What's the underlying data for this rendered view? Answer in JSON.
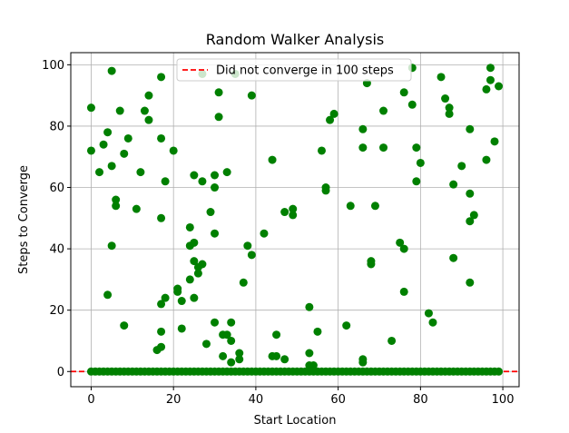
{
  "chart_data": {
    "type": "scatter",
    "title": "Random Walker Analysis",
    "xlabel": "Start Location",
    "ylabel": "Steps to Converge",
    "xlim": [
      -4.95,
      103.95
    ],
    "ylim": [
      -4.95,
      103.95
    ],
    "xticks": [
      0,
      20,
      40,
      60,
      80,
      100
    ],
    "yticks": [
      0,
      20,
      40,
      60,
      80,
      100
    ],
    "grid": true,
    "legend_position": "top-center",
    "reference_line": {
      "y": 0,
      "label": "Did not converge in 100 steps",
      "color": "#ff0000",
      "style": "dashed"
    },
    "series": [
      {
        "color": "#008000",
        "marker": "circle",
        "points": [
          [
            0,
            86
          ],
          [
            0,
            72
          ],
          [
            0,
            0
          ],
          [
            1,
            0
          ],
          [
            2,
            65
          ],
          [
            2,
            0
          ],
          [
            3,
            74
          ],
          [
            3,
            0
          ],
          [
            4,
            78
          ],
          [
            4,
            25
          ],
          [
            4,
            0
          ],
          [
            5,
            98
          ],
          [
            5,
            67
          ],
          [
            5,
            41
          ],
          [
            5,
            0
          ],
          [
            6,
            56
          ],
          [
            6,
            54
          ],
          [
            6,
            0
          ],
          [
            7,
            85
          ],
          [
            7,
            0
          ],
          [
            8,
            71
          ],
          [
            8,
            15
          ],
          [
            8,
            0
          ],
          [
            9,
            76
          ],
          [
            9,
            0
          ],
          [
            10,
            0
          ],
          [
            11,
            53
          ],
          [
            11,
            0
          ],
          [
            12,
            65
          ],
          [
            12,
            0
          ],
          [
            13,
            85
          ],
          [
            13,
            0
          ],
          [
            14,
            90
          ],
          [
            14,
            82
          ],
          [
            14,
            0
          ],
          [
            15,
            0
          ],
          [
            16,
            7
          ],
          [
            16,
            0
          ],
          [
            17,
            96
          ],
          [
            17,
            76
          ],
          [
            17,
            50
          ],
          [
            17,
            22
          ],
          [
            17,
            13
          ],
          [
            17,
            8
          ],
          [
            17,
            0
          ],
          [
            18,
            62
          ],
          [
            18,
            24
          ],
          [
            18,
            0
          ],
          [
            19,
            0
          ],
          [
            20,
            72
          ],
          [
            20,
            0
          ],
          [
            21,
            27
          ],
          [
            21,
            26
          ],
          [
            21,
            0
          ],
          [
            22,
            23
          ],
          [
            22,
            14
          ],
          [
            22,
            0
          ],
          [
            23,
            0
          ],
          [
            24,
            47
          ],
          [
            24,
            41
          ],
          [
            24,
            30
          ],
          [
            24,
            0
          ],
          [
            25,
            64
          ],
          [
            25,
            42
          ],
          [
            25,
            36
          ],
          [
            25,
            24
          ],
          [
            25,
            0
          ],
          [
            26,
            34
          ],
          [
            26,
            32
          ],
          [
            26,
            0
          ],
          [
            27,
            97
          ],
          [
            27,
            62
          ],
          [
            27,
            35
          ],
          [
            27,
            0
          ],
          [
            28,
            9
          ],
          [
            28,
            0
          ],
          [
            29,
            52
          ],
          [
            29,
            0
          ],
          [
            30,
            64
          ],
          [
            30,
            60
          ],
          [
            30,
            45
          ],
          [
            30,
            16
          ],
          [
            30,
            0
          ],
          [
            31,
            91
          ],
          [
            31,
            83
          ],
          [
            31,
            0
          ],
          [
            32,
            12
          ],
          [
            32,
            5
          ],
          [
            32,
            0
          ],
          [
            33,
            65
          ],
          [
            33,
            12
          ],
          [
            33,
            0
          ],
          [
            34,
            16
          ],
          [
            34,
            10
          ],
          [
            34,
            3
          ],
          [
            34,
            0
          ],
          [
            35,
            97
          ],
          [
            35,
            0
          ],
          [
            36,
            6
          ],
          [
            36,
            4
          ],
          [
            36,
            0
          ],
          [
            37,
            29
          ],
          [
            37,
            0
          ],
          [
            38,
            41
          ],
          [
            38,
            0
          ],
          [
            39,
            90
          ],
          [
            39,
            38
          ],
          [
            39,
            0
          ],
          [
            40,
            0
          ],
          [
            41,
            0
          ],
          [
            42,
            45
          ],
          [
            42,
            0
          ],
          [
            43,
            0
          ],
          [
            44,
            69
          ],
          [
            44,
            5
          ],
          [
            44,
            0
          ],
          [
            45,
            12
          ],
          [
            45,
            5
          ],
          [
            45,
            0
          ],
          [
            46,
            0
          ],
          [
            47,
            52
          ],
          [
            47,
            4
          ],
          [
            47,
            0
          ],
          [
            48,
            0
          ],
          [
            49,
            53
          ],
          [
            49,
            51
          ],
          [
            49,
            0
          ],
          [
            50,
            0
          ],
          [
            51,
            0
          ],
          [
            52,
            0
          ],
          [
            53,
            21
          ],
          [
            53,
            6
          ],
          [
            53,
            2
          ],
          [
            53,
            0
          ],
          [
            54,
            2
          ],
          [
            54,
            0
          ],
          [
            55,
            13
          ],
          [
            55,
            0
          ],
          [
            56,
            72
          ],
          [
            56,
            0
          ],
          [
            57,
            60
          ],
          [
            57,
            59
          ],
          [
            57,
            0
          ],
          [
            58,
            82
          ],
          [
            58,
            0
          ],
          [
            59,
            84
          ],
          [
            59,
            0
          ],
          [
            60,
            0
          ],
          [
            61,
            0
          ],
          [
            62,
            15
          ],
          [
            62,
            0
          ],
          [
            63,
            54
          ],
          [
            63,
            0
          ],
          [
            64,
            0
          ],
          [
            65,
            0
          ],
          [
            66,
            79
          ],
          [
            66,
            73
          ],
          [
            66,
            4
          ],
          [
            66,
            3
          ],
          [
            66,
            0
          ],
          [
            67,
            94
          ],
          [
            67,
            0
          ],
          [
            68,
            36
          ],
          [
            68,
            35
          ],
          [
            68,
            0
          ],
          [
            69,
            54
          ],
          [
            69,
            0
          ],
          [
            70,
            0
          ],
          [
            71,
            85
          ],
          [
            71,
            73
          ],
          [
            71,
            0
          ],
          [
            72,
            0
          ],
          [
            73,
            10
          ],
          [
            73,
            0
          ],
          [
            74,
            0
          ],
          [
            75,
            42
          ],
          [
            75,
            0
          ],
          [
            76,
            91
          ],
          [
            76,
            40
          ],
          [
            76,
            26
          ],
          [
            76,
            0
          ],
          [
            77,
            0
          ],
          [
            78,
            99
          ],
          [
            78,
            87
          ],
          [
            78,
            0
          ],
          [
            79,
            73
          ],
          [
            79,
            62
          ],
          [
            79,
            0
          ],
          [
            80,
            68
          ],
          [
            80,
            0
          ],
          [
            81,
            0
          ],
          [
            82,
            19
          ],
          [
            82,
            0
          ],
          [
            83,
            16
          ],
          [
            83,
            0
          ],
          [
            84,
            0
          ],
          [
            85,
            96
          ],
          [
            85,
            0
          ],
          [
            86,
            89
          ],
          [
            86,
            0
          ],
          [
            87,
            86
          ],
          [
            87,
            84
          ],
          [
            87,
            0
          ],
          [
            88,
            61
          ],
          [
            88,
            37
          ],
          [
            88,
            0
          ],
          [
            89,
            0
          ],
          [
            90,
            67
          ],
          [
            90,
            0
          ],
          [
            91,
            0
          ],
          [
            92,
            79
          ],
          [
            92,
            58
          ],
          [
            92,
            49
          ],
          [
            92,
            29
          ],
          [
            92,
            0
          ],
          [
            93,
            51
          ],
          [
            93,
            0
          ],
          [
            94,
            0
          ],
          [
            95,
            0
          ],
          [
            96,
            92
          ],
          [
            96,
            69
          ],
          [
            96,
            0
          ],
          [
            97,
            99
          ],
          [
            97,
            95
          ],
          [
            97,
            0
          ],
          [
            98,
            75
          ],
          [
            98,
            0
          ],
          [
            99,
            93
          ],
          [
            99,
            0
          ]
        ]
      }
    ]
  }
}
